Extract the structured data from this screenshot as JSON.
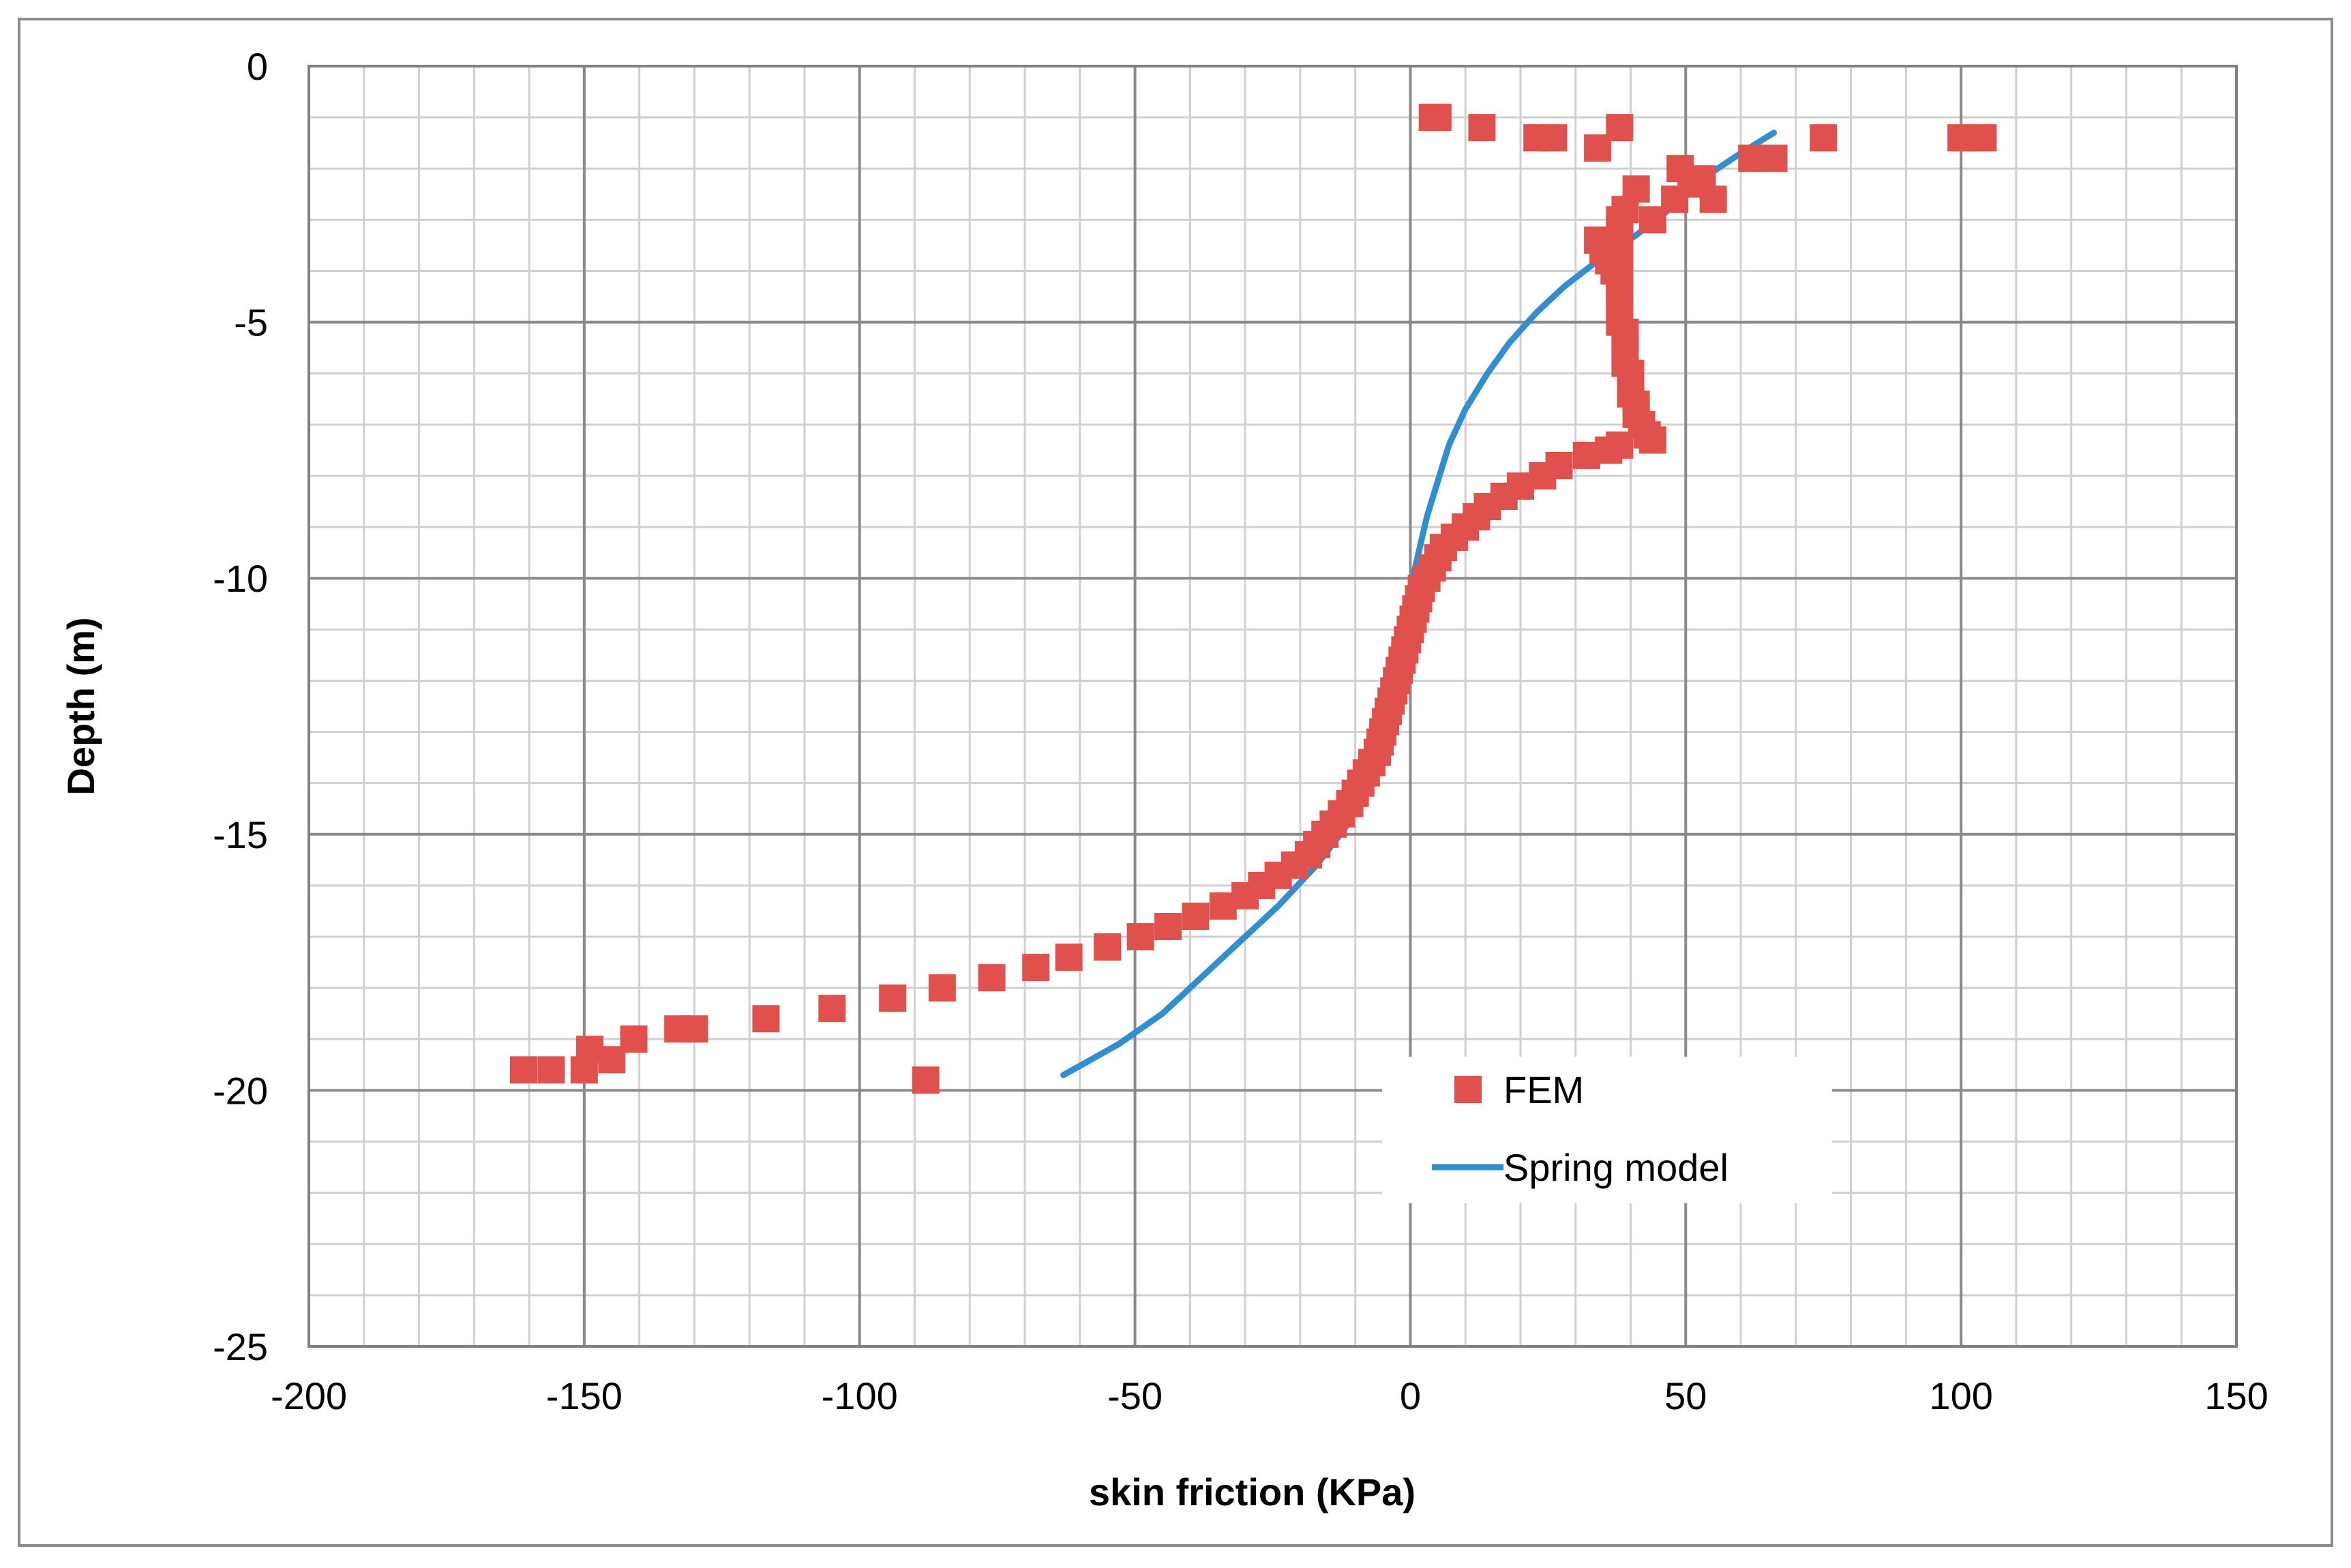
{
  "chart_data": {
    "type": "scatter",
    "title": "",
    "xlabel": "skin friction (KPa)",
    "ylabel": "Depth (m)",
    "xlim": [
      -200,
      150
    ],
    "ylim": [
      -25,
      0
    ],
    "x_major_ticks": [
      -200,
      -150,
      -100,
      -50,
      0,
      50,
      100,
      150
    ],
    "y_major_ticks": [
      0,
      -5,
      -10,
      -15,
      -20,
      -25
    ],
    "x_minor_step": 10,
    "y_minor_step": 1,
    "grid": true,
    "legend_position": "bottom-right inside plot",
    "series": [
      {
        "name": "FEM",
        "kind": "markers",
        "marker": "square",
        "color": "#E0504D",
        "points": [
          [
            5,
            -1.0
          ],
          [
            4,
            -1.0
          ],
          [
            13,
            -1.2
          ],
          [
            23,
            -1.4
          ],
          [
            26,
            -1.4
          ],
          [
            34,
            -1.6
          ],
          [
            38,
            -1.2
          ],
          [
            62,
            -1.8
          ],
          [
            66,
            -1.8
          ],
          [
            75,
            -1.4
          ],
          [
            100,
            -1.4
          ],
          [
            104,
            -1.4
          ],
          [
            49,
            -2.0
          ],
          [
            53,
            -2.2
          ],
          [
            51,
            -2.3
          ],
          [
            41,
            -2.4
          ],
          [
            48,
            -2.6
          ],
          [
            55,
            -2.6
          ],
          [
            39,
            -2.8
          ],
          [
            38,
            -3.0
          ],
          [
            44,
            -3.0
          ],
          [
            38,
            -3.2
          ],
          [
            34,
            -3.4
          ],
          [
            38,
            -3.4
          ],
          [
            35,
            -3.6
          ],
          [
            38,
            -3.6
          ],
          [
            36,
            -3.8
          ],
          [
            38,
            -3.8
          ],
          [
            37,
            -4.0
          ],
          [
            38,
            -4.0
          ],
          [
            38,
            -4.2
          ],
          [
            38,
            -4.4
          ],
          [
            38,
            -4.6
          ],
          [
            38,
            -4.8
          ],
          [
            38,
            -5.0
          ],
          [
            39,
            -5.2
          ],
          [
            39,
            -5.4
          ],
          [
            39,
            -5.6
          ],
          [
            39,
            -5.8
          ],
          [
            40,
            -6.0
          ],
          [
            40,
            -6.2
          ],
          [
            40,
            -6.4
          ],
          [
            41,
            -6.6
          ],
          [
            41,
            -6.8
          ],
          [
            42,
            -7.0
          ],
          [
            43,
            -7.2
          ],
          [
            44,
            -7.3
          ],
          [
            38,
            -7.4
          ],
          [
            36,
            -7.5
          ],
          [
            32,
            -7.6
          ],
          [
            27,
            -7.8
          ],
          [
            24,
            -8.0
          ],
          [
            20,
            -8.2
          ],
          [
            17,
            -8.4
          ],
          [
            14,
            -8.6
          ],
          [
            12,
            -8.8
          ],
          [
            10,
            -9.0
          ],
          [
            8,
            -9.2
          ],
          [
            6,
            -9.4
          ],
          [
            5,
            -9.6
          ],
          [
            4,
            -9.8
          ],
          [
            3,
            -10.0
          ],
          [
            2,
            -10.2
          ],
          [
            1.5,
            -10.4
          ],
          [
            1,
            -10.6
          ],
          [
            0.5,
            -10.8
          ],
          [
            0,
            -11.0
          ],
          [
            -0.5,
            -11.2
          ],
          [
            -1,
            -11.4
          ],
          [
            -1.5,
            -11.6
          ],
          [
            -2,
            -11.8
          ],
          [
            -2.5,
            -12.0
          ],
          [
            -3,
            -12.2
          ],
          [
            -3.5,
            -12.4
          ],
          [
            -4,
            -12.6
          ],
          [
            -4.5,
            -12.8
          ],
          [
            -5,
            -13.0
          ],
          [
            -5.5,
            -13.2
          ],
          [
            -6,
            -13.4
          ],
          [
            -7,
            -13.6
          ],
          [
            -8,
            -13.8
          ],
          [
            -9,
            -14.0
          ],
          [
            -10,
            -14.2
          ],
          [
            -11,
            -14.4
          ],
          [
            -12.5,
            -14.6
          ],
          [
            -14,
            -14.8
          ],
          [
            -15.5,
            -15.0
          ],
          [
            -17,
            -15.2
          ],
          [
            -18.5,
            -15.4
          ],
          [
            -21,
            -15.6
          ],
          [
            -24,
            -15.8
          ],
          [
            -27,
            -16.0
          ],
          [
            -30,
            -16.2
          ],
          [
            -34,
            -16.4
          ],
          [
            -39,
            -16.6
          ],
          [
            -44,
            -16.8
          ],
          [
            -49,
            -17.0
          ],
          [
            -55,
            -17.2
          ],
          [
            -62,
            -17.4
          ],
          [
            -68,
            -17.6
          ],
          [
            -76,
            -17.8
          ],
          [
            -85,
            -18.0
          ],
          [
            -94,
            -18.2
          ],
          [
            -105,
            -18.4
          ],
          [
            -117,
            -18.6
          ],
          [
            -130,
            -18.8
          ],
          [
            -133,
            -18.8
          ],
          [
            -141,
            -19.0
          ],
          [
            -149,
            -19.2
          ],
          [
            -145,
            -19.4
          ],
          [
            -150,
            -19.6
          ],
          [
            -156,
            -19.6
          ],
          [
            -161,
            -19.6
          ],
          [
            -88,
            -19.8
          ]
        ]
      },
      {
        "name": "Spring model",
        "kind": "line",
        "color": "#2F8FD0",
        "points": [
          [
            66,
            -1.3
          ],
          [
            60,
            -1.7
          ],
          [
            53,
            -2.2
          ],
          [
            47,
            -2.8
          ],
          [
            41,
            -3.3
          ],
          [
            34,
            -3.8
          ],
          [
            28,
            -4.3
          ],
          [
            23,
            -4.8
          ],
          [
            18,
            -5.4
          ],
          [
            14,
            -6.0
          ],
          [
            10,
            -6.7
          ],
          [
            7,
            -7.4
          ],
          [
            5,
            -8.1
          ],
          [
            3,
            -8.8
          ],
          [
            1.5,
            -9.5
          ],
          [
            0,
            -10.2
          ],
          [
            -1,
            -11.0
          ],
          [
            -2,
            -11.8
          ],
          [
            -3,
            -12.6
          ],
          [
            -5,
            -13.4
          ],
          [
            -8,
            -14.2
          ],
          [
            -12,
            -14.9
          ],
          [
            -17,
            -15.6
          ],
          [
            -24,
            -16.4
          ],
          [
            -31,
            -17.1
          ],
          [
            -38,
            -17.8
          ],
          [
            -45,
            -18.5
          ],
          [
            -53,
            -19.1
          ],
          [
            -63,
            -19.7
          ]
        ]
      }
    ]
  }
}
